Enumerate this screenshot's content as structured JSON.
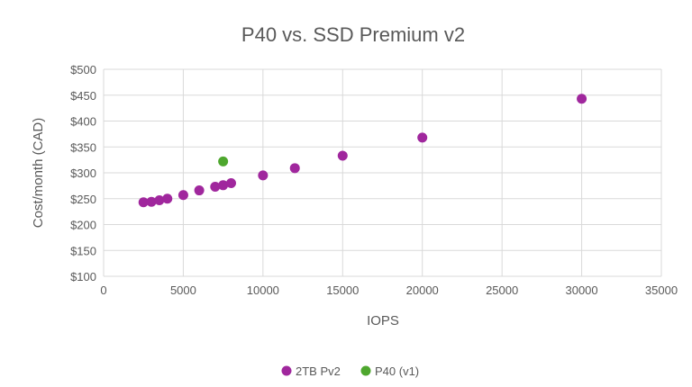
{
  "chart_data": {
    "type": "scatter",
    "title": "P40 vs. SSD Premium v2",
    "xlabel": "IOPS",
    "ylabel": "Cost/month (CAD)",
    "xlim": [
      0,
      35000
    ],
    "ylim": [
      100,
      500
    ],
    "xticks": [
      "0",
      "5000",
      "10000",
      "15000",
      "20000",
      "25000",
      "30000",
      "35000"
    ],
    "yticks": [
      "$100",
      "$150",
      "$200",
      "$250",
      "$300",
      "$350",
      "$400",
      "$450",
      "$500"
    ],
    "grid": true,
    "legend": "bottom",
    "series": [
      {
        "name": "2TB Pv2",
        "color": "#A0279D",
        "points": [
          [
            2500,
            243
          ],
          [
            3000,
            244
          ],
          [
            3500,
            247
          ],
          [
            4000,
            250
          ],
          [
            5000,
            257
          ],
          [
            6000,
            266
          ],
          [
            7000,
            273
          ],
          [
            7500,
            276
          ],
          [
            8000,
            280
          ],
          [
            10000,
            295
          ],
          [
            12000,
            309
          ],
          [
            15000,
            333
          ],
          [
            20000,
            368
          ],
          [
            30000,
            443
          ]
        ]
      },
      {
        "name": "P40 (v1)",
        "color": "#4EA72E",
        "points": [
          [
            7500,
            322
          ]
        ]
      }
    ]
  }
}
